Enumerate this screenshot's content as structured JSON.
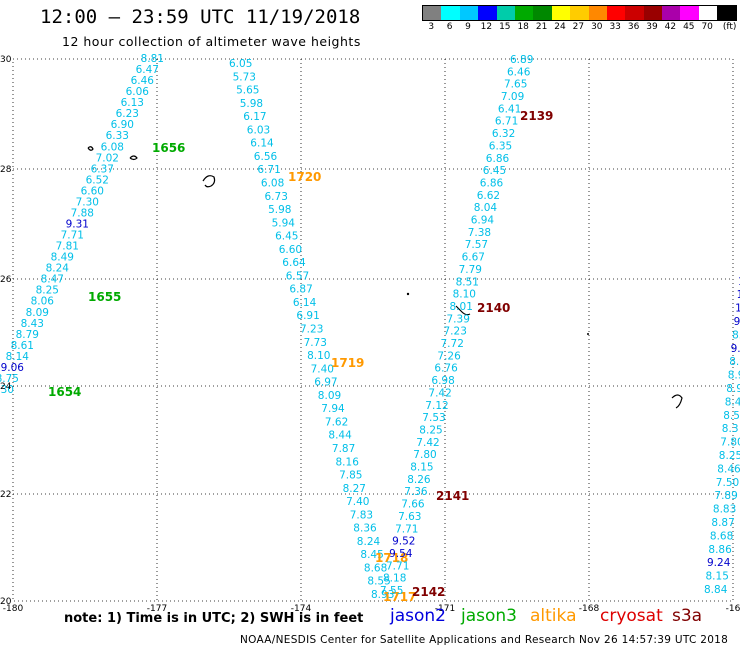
{
  "header": {
    "title": "12:00 — 23:59 UTC 11/19/2018",
    "subtitle": "12 hour collection of altimeter wave heights"
  },
  "legend": {
    "colors": [
      "#808080",
      "#00ffff",
      "#00c8ff",
      "#0000ff",
      "#00ccaa",
      "#00aa00",
      "#008800",
      "#ffff00",
      "#ffcc00",
      "#ff8800",
      "#ff0000",
      "#cc0000",
      "#990000",
      "#aa00aa",
      "#ff00ff",
      "#ffffff",
      "#000000"
    ],
    "labels": [
      "3",
      "6",
      "9",
      "12",
      "15",
      "18",
      "21",
      "24",
      "27",
      "30",
      "33",
      "36",
      "39",
      "42",
      "45",
      "70",
      "(ft)"
    ]
  },
  "axes": {
    "lat_labels": [
      "30",
      "28",
      "26",
      "24",
      "22",
      "20"
    ],
    "lon_labels": [
      "-180",
      "-177",
      "-174",
      "-171",
      "-168",
      "-16"
    ]
  },
  "tracks": [
    {
      "sat": "jason3",
      "values": [
        "8.81",
        "6.47",
        "6.46",
        "6.06",
        "6.13",
        "6.23",
        "6.90",
        "6.33",
        "6.08",
        "7.02",
        "6.37",
        "6.52",
        "6.60",
        "7.30",
        "7.88",
        "9.31",
        "7.71",
        "7.81",
        "8.49",
        "8.24",
        "8.47",
        "8.25",
        "8.06",
        "8.09",
        "8.43",
        "8.79",
        "8.61",
        "8.14",
        "9.06",
        "8.75",
        "8.30"
      ],
      "times": [
        "1656",
        "1655",
        "1654"
      ]
    },
    {
      "sat": "altika",
      "values": [
        "6.05",
        "5.73",
        "5.65",
        "5.98",
        "6.17",
        "6.03",
        "6.14",
        "6.56",
        "6.71",
        "6.08",
        "6.73",
        "5.98",
        "5.94",
        "6.45",
        "6.60",
        "6.64",
        "6.57",
        "6.87",
        "6.14",
        "6.91",
        "7.23",
        "7.73",
        "8.10",
        "7.40",
        "6.97",
        "8.09",
        "7.94",
        "7.62",
        "8.44",
        "7.87",
        "8.16",
        "7.85",
        "8.27",
        "7.40",
        "7.83",
        "8.36",
        "8.24",
        "8.45",
        "8.68",
        "8.55",
        "8.93"
      ],
      "times": [
        "1720",
        "1719",
        "1718",
        "1717"
      ]
    },
    {
      "sat": "cryosat",
      "values": [
        "6.89",
        "6.46",
        "7.65",
        "7.09",
        "6.41",
        "6.71",
        "6.32",
        "6.35",
        "6.86",
        "6.45",
        "6.86",
        "6.62",
        "8.04",
        "6.94",
        "7.38",
        "7.57",
        "6.67",
        "7.79",
        "8.51",
        "8.10",
        "8.01",
        "7.39",
        "7.23",
        "7.72",
        "7.26",
        "6.76",
        "6.98",
        "7.42",
        "7.12",
        "7.53",
        "8.25",
        "7.42",
        "7.80",
        "8.15",
        "8.26",
        "7.36",
        "7.66",
        "7.63",
        "7.71",
        "9.52",
        "9.54",
        "7.71",
        "8.18",
        "7.55"
      ],
      "times": [
        "2139",
        "2140",
        "2141",
        "2142"
      ]
    },
    {
      "sat": "edge",
      "values": [
        "9",
        "10",
        "11",
        "10",
        "10",
        "9.",
        "8.",
        "9.06",
        "8.9",
        "8.9",
        "8.9",
        "8.4",
        "8.5",
        "8.3",
        "7.80",
        "8.25",
        "8.46",
        "7.50",
        "7.89",
        "8.83",
        "8.87",
        "8.68",
        "8.86",
        "9.24",
        "8.15",
        "8.84"
      ],
      "times": []
    }
  ],
  "footer": {
    "note": "note:  1) Time is in UTC;  2) SWH is in feet",
    "satellites": [
      {
        "name": "jason2",
        "color": "#0000dd"
      },
      {
        "name": "jason3",
        "color": "#00aa00"
      },
      {
        "name": "altika",
        "color": "#ff9900"
      },
      {
        "name": "cryosat",
        "color": "#dd0000"
      },
      {
        "name": "s3a",
        "color": "#800000"
      }
    ],
    "credit": "NOAA/NESDIS Center for Satellite Applications and Research    Nov 26 14:57:39 UTC 2018"
  }
}
